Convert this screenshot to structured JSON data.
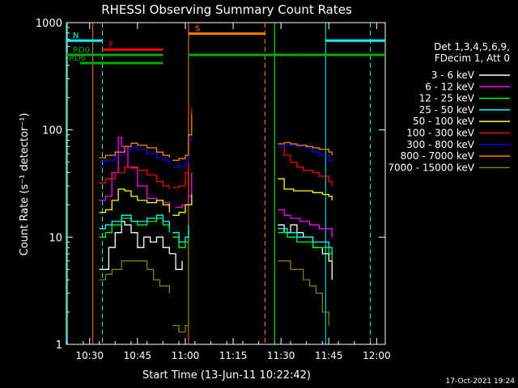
{
  "chart_data": {
    "type": "line",
    "title": "RHESSI Observing Summary Count Rates",
    "xlabel": "Start Time (13-Jun-11 10:22:42)",
    "ylabel": "Count Rate (s⁻¹ detector⁻¹)",
    "y_scale": "log",
    "ylim": [
      1,
      1000
    ],
    "xlim": [
      "10:22:42",
      "12:02:42"
    ],
    "x_ticks": [
      "10:30",
      "10:45",
      "11:00",
      "11:15",
      "11:30",
      "11:45",
      "12:00"
    ],
    "y_ticks": [
      "1",
      "10",
      "100",
      "1000"
    ],
    "legend_title": [
      "Det 1,3,4,5,6,9,",
      "FDecim 1, Att 0"
    ],
    "legend_position": "right",
    "footer_date": "17-Oct-2021 19:24",
    "series": [
      {
        "name": "3 - 6 keV",
        "color": "#ffffff",
        "segments": [
          {
            "t": [
              "10:33",
              "10:36",
              "10:38",
              "10:40",
              "10:41",
              "10:43",
              "10:45",
              "10:47",
              "10:49",
              "10:51",
              "10:53",
              "10:55"
            ],
            "y": [
              5,
              8,
              11,
              14,
              13,
              11,
              8,
              10,
              9,
              10,
              8,
              7
            ]
          },
          {
            "t": [
              "10:55",
              "10:57",
              "10:59"
            ],
            "y": [
              7,
              5,
              6
            ]
          },
          {
            "t": [
              "11:29",
              "11:31",
              "11:33",
              "11:35",
              "11:37",
              "11:40",
              "11:43",
              "11:45",
              "11:46"
            ],
            "y": [
              13,
              11,
              13,
              11,
              10,
              8,
              7,
              6,
              4
            ]
          }
        ]
      },
      {
        "name": "6 - 12 keV",
        "color": "#ff00ff",
        "segments": [
          {
            "t": [
              "10:33",
              "10:35",
              "10:37",
              "10:39",
              "10:40",
              "10:42",
              "10:45",
              "10:48",
              "10:51",
              "10:53",
              "10:55"
            ],
            "y": [
              22,
              24,
              40,
              85,
              70,
              45,
              30,
              23,
              22,
              21,
              19
            ]
          },
          {
            "t": [
              "10:57",
              "10:59",
              "11:01",
              "11:02"
            ],
            "y": [
              19,
              20,
              24,
              40
            ]
          },
          {
            "t": [
              "11:29",
              "11:31",
              "11:33",
              "11:36",
              "11:39",
              "11:42",
              "11:45",
              "11:46"
            ],
            "y": [
              18,
              16,
              15,
              14,
              13,
              12,
              12,
              10
            ]
          }
        ]
      },
      {
        "name": "12 - 25 keV",
        "color": "#00ff00",
        "segments": [
          {
            "t": [
              "10:33",
              "10:35",
              "10:37",
              "10:40",
              "10:43",
              "10:45",
              "10:48",
              "10:51",
              "10:53",
              "10:55"
            ],
            "y": [
              10,
              11,
              13,
              15,
              14,
              13,
              14,
              15,
              13,
              11
            ]
          },
          {
            "t": [
              "10:56",
              "10:58",
              "11:00",
              "11:01"
            ],
            "y": [
              10,
              8,
              9,
              12
            ]
          },
          {
            "t": [
              "11:29",
              "11:32",
              "11:35",
              "11:38",
              "11:40",
              "11:42",
              "11:44",
              "11:45",
              "11:46"
            ],
            "y": [
              11,
              10,
              9,
              9,
              8,
              8,
              8,
              7,
              6
            ]
          }
        ]
      },
      {
        "name": "25 - 50 keV",
        "color": "#00ffff",
        "segments": [
          {
            "t": [
              "10:33",
              "10:35",
              "10:37",
              "10:40",
              "10:43",
              "10:45",
              "10:48",
              "10:51",
              "10:53",
              "10:55"
            ],
            "y": [
              12,
              13,
              14,
              16,
              14,
              14,
              15,
              16,
              14,
              12
            ]
          },
          {
            "t": [
              "10:56",
              "10:58",
              "11:00",
              "11:01"
            ],
            "y": [
              11,
              9,
              10,
              13
            ]
          },
          {
            "t": [
              "11:29",
              "11:32",
              "11:35",
              "11:38",
              "11:40",
              "11:42",
              "11:44",
              "11:45",
              "11:46"
            ],
            "y": [
              12,
              11,
              10,
              10,
              9,
              9,
              9,
              8,
              7
            ]
          }
        ]
      },
      {
        "name": "50 - 100 keV",
        "color": "#ffff00",
        "segments": [
          {
            "t": [
              "10:33",
              "10:35",
              "10:37",
              "10:39",
              "10:41",
              "10:43",
              "10:45",
              "10:48",
              "10:51",
              "10:53",
              "10:55"
            ],
            "y": [
              17,
              18,
              22,
              28,
              27,
              24,
              22,
              21,
              22,
              20,
              17
            ]
          },
          {
            "t": [
              "10:56",
              "10:58",
              "11:00",
              "11:02"
            ],
            "y": [
              16,
              17,
              20,
              25
            ]
          },
          {
            "t": [
              "11:29",
              "11:31",
              "11:34",
              "11:37",
              "11:40",
              "11:43",
              "11:45",
              "11:46"
            ],
            "y": [
              35,
              28,
              27,
              27,
              26,
              25,
              24,
              22
            ]
          }
        ]
      },
      {
        "name": "100 - 300 keV",
        "color": "#ff0000",
        "segments": [
          {
            "t": [
              "10:33",
              "10:35",
              "10:38",
              "10:41",
              "10:43",
              "10:45",
              "10:48",
              "10:51",
              "10:53",
              "10:55"
            ],
            "y": [
              32,
              35,
              40,
              45,
              44,
              42,
              38,
              33,
              30,
              28
            ]
          },
          {
            "t": [
              "10:56",
              "10:58",
              "11:00",
              "11:01",
              "11:02"
            ],
            "y": [
              29,
              30,
              40,
              90,
              160
            ]
          },
          {
            "t": [
              "11:29",
              "11:31",
              "11:33",
              "11:35",
              "11:37",
              "11:40",
              "11:42",
              "11:45",
              "11:46"
            ],
            "y": [
              70,
              58,
              50,
              45,
              42,
              40,
              37,
              33,
              30
            ]
          }
        ]
      },
      {
        "name": "300 - 800 keV",
        "color": "#0000ff",
        "segments": [
          {
            "t": [
              "10:33",
              "10:35",
              "10:38",
              "10:41",
              "10:43",
              "10:45",
              "10:48",
              "10:51",
              "10:53",
              "10:55"
            ],
            "y": [
              50,
              52,
              58,
              65,
              68,
              65,
              60,
              55,
              52,
              48
            ]
          },
          {
            "t": [
              "10:56",
              "10:58",
              "11:00",
              "11:01",
              "11:02"
            ],
            "y": [
              45,
              46,
              50,
              80,
              130
            ]
          },
          {
            "t": [
              "11:29",
              "11:31",
              "11:33",
              "11:35",
              "11:38",
              "11:40",
              "11:42",
              "11:45",
              "11:46"
            ],
            "y": [
              70,
              72,
              72,
              70,
              68,
              62,
              58,
              52,
              50
            ]
          }
        ]
      },
      {
        "name": "800 - 7000 keV",
        "color": "#ff8000",
        "segments": [
          {
            "t": [
              "10:33",
              "10:35",
              "10:38",
              "10:41",
              "10:43",
              "10:45",
              "10:48",
              "10:51",
              "10:53",
              "10:55"
            ],
            "y": [
              55,
              58,
              62,
              70,
              75,
              72,
              68,
              62,
              58,
              55
            ]
          },
          {
            "t": [
              "10:56",
              "10:58",
              "11:00",
              "11:01",
              "11:02"
            ],
            "y": [
              52,
              54,
              58,
              90,
              140
            ]
          },
          {
            "t": [
              "11:29",
              "11:31",
              "11:33",
              "11:35",
              "11:38",
              "11:40",
              "11:42",
              "11:45",
              "11:46"
            ],
            "y": [
              74,
              76,
              74,
              72,
              70,
              68,
              66,
              62,
              58
            ]
          }
        ]
      },
      {
        "name": "7000 - 15000 keV",
        "color": "#808000",
        "segments": [
          {
            "t": [
              "10:33",
              "10:35",
              "10:37",
              "10:40",
              "10:43",
              "10:45",
              "10:48",
              "10:50",
              "10:52",
              "10:55"
            ],
            "y": [
              4,
              4.5,
              5,
              6,
              6,
              6,
              5,
              4,
              3.5,
              3
            ]
          },
          {
            "t": [
              "10:56",
              "10:58",
              "11:00",
              "11:01"
            ],
            "y": [
              1.5,
              1.3,
              1.5,
              9
            ]
          },
          {
            "t": [
              "11:29",
              "11:31",
              "11:33",
              "11:35",
              "11:37",
              "11:39",
              "11:41",
              "11:43",
              "11:45"
            ],
            "y": [
              6,
              6,
              5,
              5,
              4,
              3.5,
              3,
              2,
              1.5
            ]
          }
        ]
      }
    ],
    "state_bars": [
      {
        "label": "N",
        "color": "#00ffff",
        "level": 680,
        "spans": [
          [
            "10:22:42",
            "10:34"
          ],
          [
            "11:44",
            "12:02:42"
          ]
        ]
      },
      {
        "label": "F",
        "color": "#ff0000",
        "level": 560,
        "spans": [
          [
            "10:34",
            "10:53"
          ]
        ]
      },
      {
        "label": "S",
        "color": "#ff8000",
        "level": 790,
        "spans": [
          [
            "11:01",
            "11:25"
          ]
        ]
      },
      {
        "label": "RD0",
        "color": "#00aa00",
        "level": 500,
        "spans": [
          [
            "10:22:42",
            "10:53"
          ],
          [
            "11:01",
            "11:25"
          ],
          [
            "11:25",
            "11:37"
          ],
          [
            "11:37",
            "12:02:42"
          ]
        ]
      },
      {
        "label": "RD6",
        "color": "#00aa00",
        "level": 420,
        "spans": [
          [
            "10:27",
            "10:53"
          ]
        ]
      }
    ],
    "vlines": [
      {
        "t": "10:23",
        "color": "#00ffff",
        "style": "solid"
      },
      {
        "t": "10:34",
        "color": "#00ffff",
        "style": "dashed"
      },
      {
        "t": "10:31",
        "color": "#ff8000",
        "style": "solid"
      },
      {
        "t": "11:01",
        "color": "#ff8000",
        "style": "solid"
      },
      {
        "t": "11:25",
        "color": "#ff8000",
        "style": "dashed"
      },
      {
        "t": "11:28",
        "color": "#00ff00",
        "style": "solid"
      },
      {
        "t": "11:44",
        "color": "#00ffff",
        "style": "solid"
      },
      {
        "t": "11:58",
        "color": "#00ffff",
        "style": "dashed"
      }
    ]
  }
}
